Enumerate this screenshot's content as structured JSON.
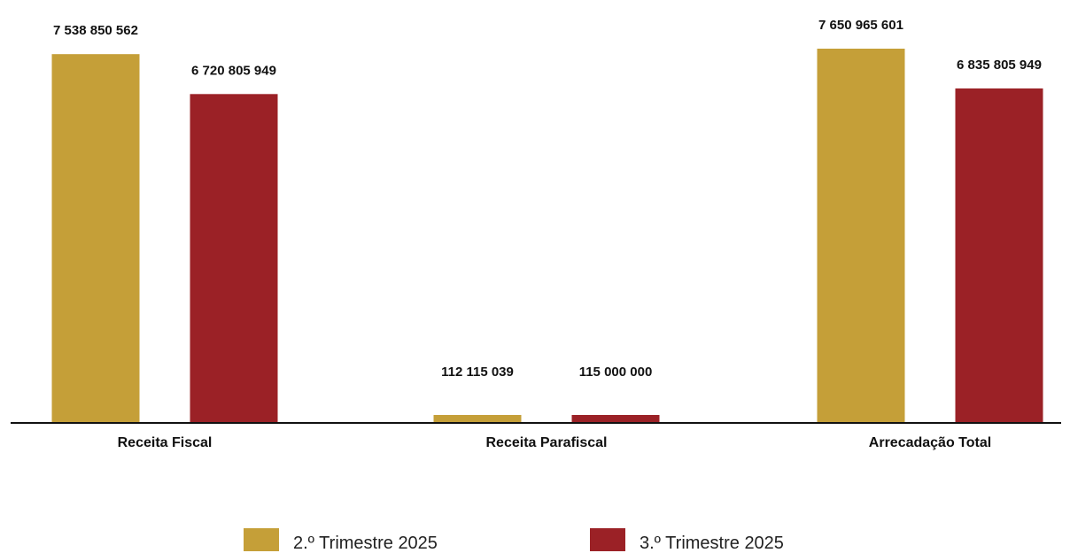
{
  "chart_data": {
    "type": "bar",
    "categories": [
      "Receita Fiscal",
      "Receita Parafiscal",
      "Arrecadação Total"
    ],
    "series": [
      {
        "name": "2.º Trimestre 2025",
        "color": "#C59F38",
        "values": [
          7538850562,
          112115039,
          7650965601
        ],
        "labels": [
          "7 538 850 562",
          "112 115 039",
          "7 650 965 601"
        ]
      },
      {
        "name": "3.º Trimestre 2025",
        "color": "#9B2126",
        "values": [
          6720805949,
          115000000,
          6835805949
        ],
        "labels": [
          "6 720 805 949",
          "115 000 000",
          "6 835 805 949"
        ]
      }
    ],
    "legend_position": "bottom",
    "grid": false
  }
}
